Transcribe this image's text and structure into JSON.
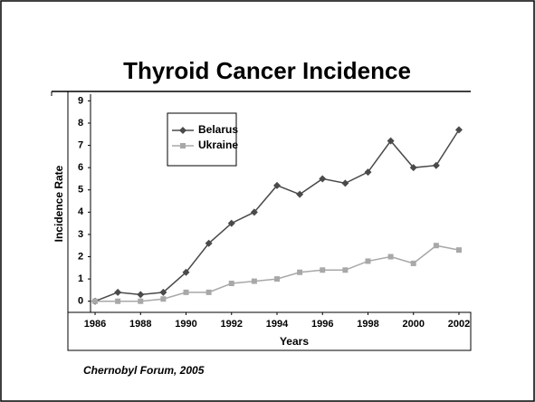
{
  "chart_data": {
    "type": "line",
    "title": "Thyroid Cancer Incidence",
    "x_label": "Years",
    "y_label": "Incidence Rate",
    "source": "Chernobyl Forum, 2005",
    "x": [
      1986,
      1987,
      1988,
      1989,
      1990,
      1991,
      1992,
      1993,
      1994,
      1995,
      1996,
      1997,
      1998,
      1999,
      2000,
      2001,
      2002
    ],
    "series": [
      {
        "name": "Belarus",
        "color": "#4a4a4a",
        "marker": "diamond",
        "values": [
          0,
          0.4,
          0.3,
          0.4,
          1.3,
          2.6,
          3.5,
          4.0,
          5.2,
          4.8,
          5.5,
          5.3,
          5.8,
          7.2,
          6.0,
          6.1,
          7.7
        ]
      },
      {
        "name": "Ukraine",
        "color": "#a8a8a8",
        "marker": "square",
        "values": [
          0,
          0,
          0,
          0.1,
          0.4,
          0.4,
          0.8,
          0.9,
          1.0,
          1.3,
          1.4,
          1.4,
          1.8,
          2.0,
          1.7,
          2.5,
          2.3
        ]
      }
    ],
    "xlim": [
      1985.8,
      2002.2
    ],
    "xticks": [
      1986,
      1988,
      1990,
      1992,
      1994,
      1996,
      1998,
      2000,
      2002
    ],
    "ylim": [
      -0.5,
      9.3
    ],
    "yticks": [
      0,
      1,
      2,
      3,
      4,
      5,
      6,
      7,
      8,
      9
    ],
    "grid": false,
    "legend": "upper left"
  }
}
